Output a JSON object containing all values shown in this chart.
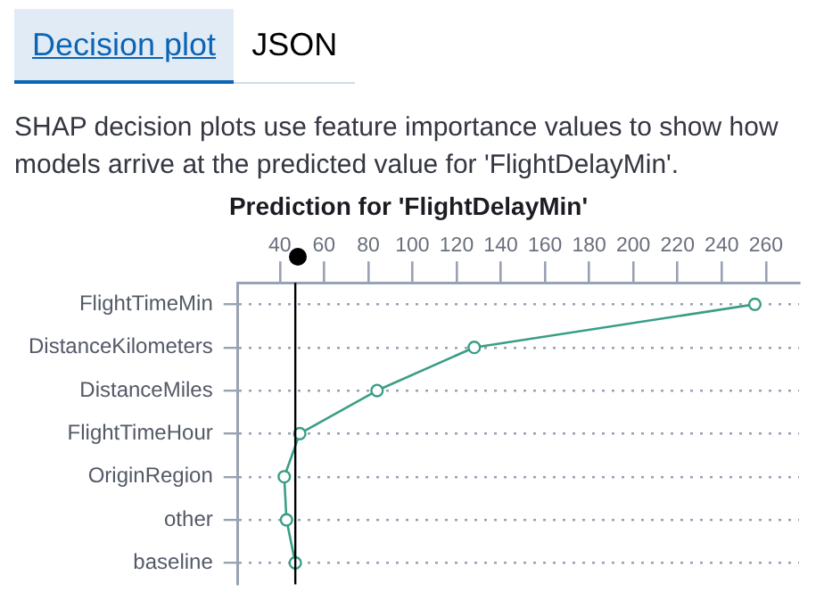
{
  "chart_data": {
    "type": "line",
    "title": "Prediction for 'FlightDelayMin'",
    "subtitle": "SHAP decision plots use feature importance values to show how models arrive at the predicted value for 'FlightDelayMin'.",
    "annotations": [
      "Decision plot",
      "JSON"
    ],
    "orientation": "horizontal",
    "categories": [
      "FlightTimeMin",
      "DistanceKilometers",
      "DistanceMiles",
      "FlightTimeHour",
      "OriginRegion",
      "other",
      "baseline"
    ],
    "series": [
      {
        "color": "#3a9e86",
        "values": [
          255,
          128,
          84,
          49,
          42,
          43,
          47
        ]
      }
    ],
    "xlim": [
      21,
      275
    ],
    "xticks": [
      40,
      60,
      80,
      100,
      120,
      140,
      160,
      180,
      200,
      220,
      240,
      260
    ],
    "ref_lines": [
      {
        "axis": "x",
        "value": 47,
        "color": "#000000"
      }
    ],
    "grid": "y",
    "marker": "circle",
    "line_style": "solid",
    "legend": false
  }
}
